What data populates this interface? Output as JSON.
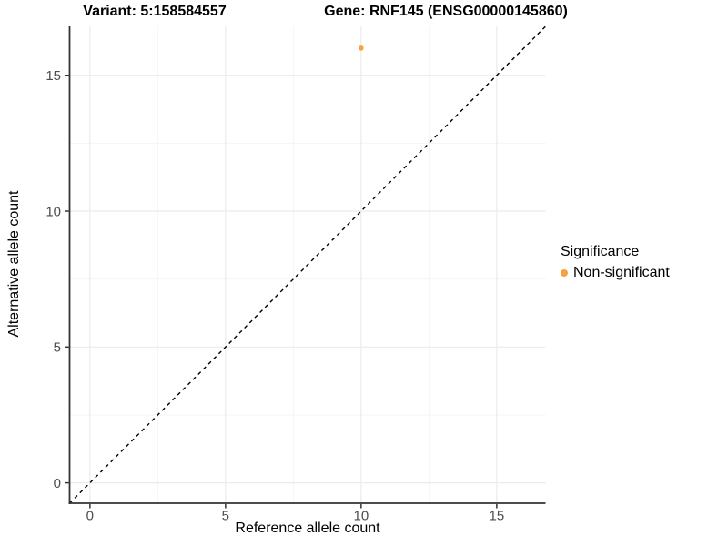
{
  "titles": {
    "variant": "Variant: 5:158584557",
    "gene": "Gene: RNF145 (ENSG00000145860)"
  },
  "chart_data": {
    "type": "scatter",
    "title_left": "Variant: 5:158584557",
    "title_right": "Gene: RNF145 (ENSG00000145860)",
    "xlabel": "Reference allele count",
    "ylabel": "Alternative allele count",
    "xlim": [
      -0.75,
      16.8
    ],
    "ylim": [
      -0.75,
      16.8
    ],
    "x_major_ticks": [
      0,
      5,
      10,
      15
    ],
    "y_major_ticks": [
      0,
      5,
      10,
      15
    ],
    "x_minor_gridlines": [
      2.5,
      7.5,
      12.5
    ],
    "y_minor_gridlines": [
      2.5,
      7.5,
      12.5
    ],
    "grid": true,
    "points": [
      {
        "x": 10,
        "y": 16,
        "series": "Non-significant"
      }
    ],
    "identity_line": {
      "slope": 1,
      "intercept": 0,
      "style": "dashed",
      "color": "#000000"
    },
    "legend": {
      "title": "Significance",
      "position": "right",
      "entries": [
        {
          "label": "Non-significant",
          "color": "#F8A13E"
        }
      ]
    },
    "colors": {
      "background": "#FFFFFF",
      "grid_major": "#EBEBEB",
      "grid_minor": "#F4F4F4",
      "axis_line": "#333333",
      "tick_label": "#4D4D4D",
      "point": "#F8A13E"
    }
  }
}
